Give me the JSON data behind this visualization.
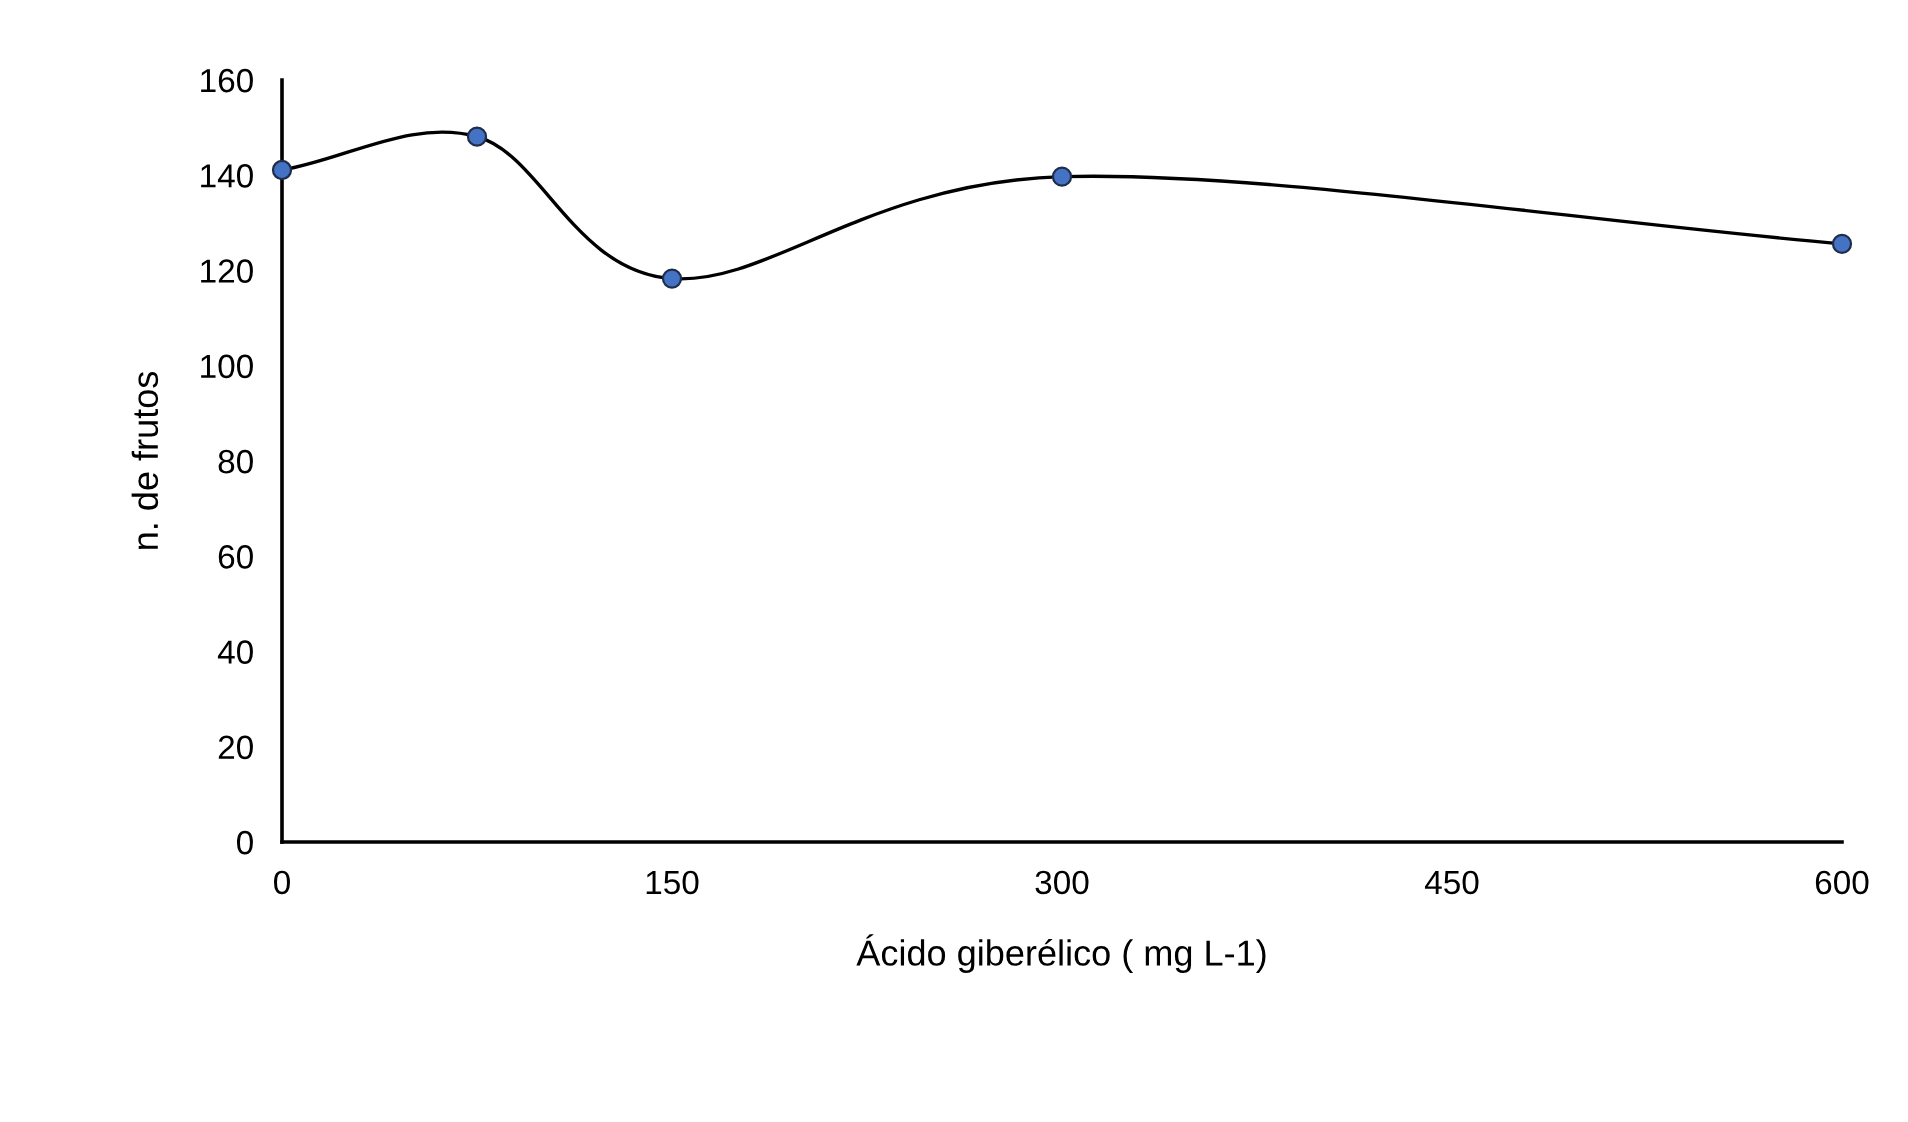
{
  "chart_data": {
    "type": "line",
    "xlabel": "Ácido giberélico ( mg L-1)",
    "ylabel": "n. de frutos",
    "x": [
      0,
      75,
      150,
      300,
      600
    ],
    "series": [
      {
        "color": "#4472c4",
        "values": [
          141.1,
          148.1,
          118.3,
          139.7,
          125.6
        ]
      }
    ],
    "xlim": [
      0,
      600
    ],
    "xticks": [
      0,
      150,
      300,
      450,
      600
    ],
    "ylim": [
      0,
      160
    ],
    "yticks": [
      0,
      20,
      40,
      60,
      80,
      100,
      120,
      140,
      160
    ],
    "marker": "circle",
    "line_style": "solid",
    "grid": false,
    "legend": false
  }
}
